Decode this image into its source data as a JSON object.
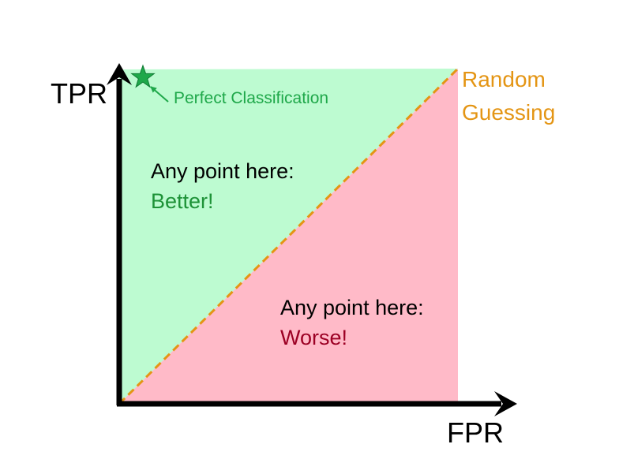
{
  "chart_data": {
    "type": "diagram",
    "x_label": "FPR",
    "y_label": "TPR",
    "regions": [
      {
        "label": "Any point here:",
        "verdict": "Better!",
        "color": "#bdfbd1",
        "text_color": "#1d9237"
      },
      {
        "label": "Any point here:",
        "verdict": "Worse!",
        "color": "#ffbac8",
        "text_color": "#9c0024"
      }
    ],
    "diagonal": {
      "label_line1": "Random",
      "label_line2": "Guessing",
      "color": "#e49514"
    },
    "marker": {
      "label": "Perfect Classification",
      "color": "#1fa84a",
      "shape": "star"
    }
  }
}
